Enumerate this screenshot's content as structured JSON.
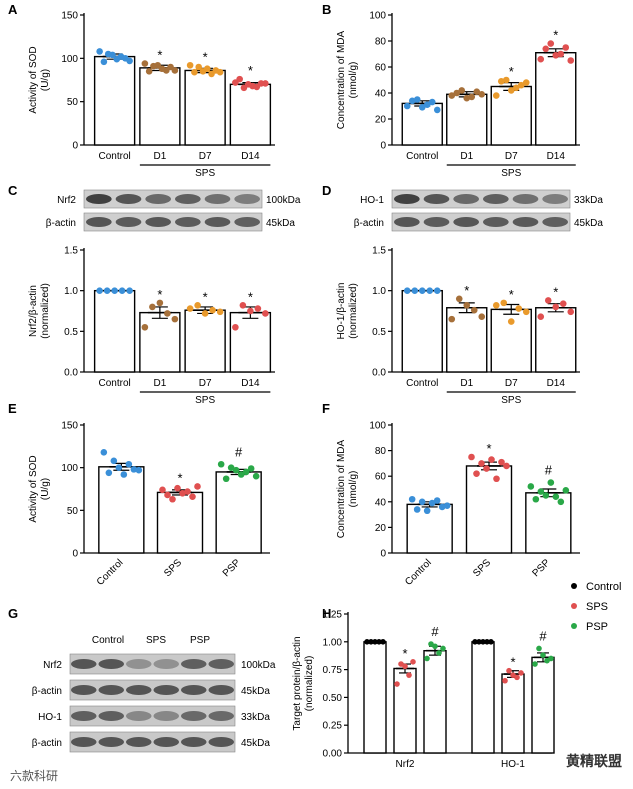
{
  "chart_data": [
    {
      "panel": "A",
      "type": "bar",
      "ylabel": [
        "Activity of SOD",
        "(U/g)"
      ],
      "ylim": [
        0,
        150
      ],
      "yticks": [
        0,
        50,
        100,
        150
      ],
      "categories": [
        "Control",
        "D1",
        "D7",
        "D14"
      ],
      "group_label": "SPS",
      "group_span": [
        1,
        3
      ],
      "values": [
        102,
        89,
        86,
        70
      ],
      "errors": [
        3,
        3,
        2.5,
        2
      ],
      "points": [
        [
          108,
          96,
          105,
          104,
          99,
          102,
          100,
          97
        ],
        [
          94,
          85,
          91,
          92,
          88,
          86,
          90,
          86
        ],
        [
          92,
          84,
          90,
          85,
          88,
          82,
          86,
          84
        ],
        [
          72,
          76,
          66,
          70,
          68,
          67,
          71,
          71
        ]
      ],
      "colors": [
        "#3a8fd8",
        "#a6703a",
        "#e99a2c",
        "#e05050"
      ],
      "sig": [
        "",
        "*",
        "*",
        "*"
      ]
    },
    {
      "panel": "B",
      "type": "bar",
      "ylabel": [
        "Concentration of MDA",
        "(nmol/g)"
      ],
      "ylim": [
        0,
        100
      ],
      "yticks": [
        0,
        20,
        40,
        60,
        80,
        100
      ],
      "categories": [
        "Control",
        "D1",
        "D7",
        "D14"
      ],
      "group_label": "SPS",
      "group_span": [
        1,
        3
      ],
      "values": [
        32,
        39,
        45,
        71
      ],
      "errors": [
        2,
        2,
        3,
        3
      ],
      "points": [
        [
          30,
          34,
          35,
          29,
          31,
          33,
          27
        ],
        [
          38,
          40,
          42,
          36,
          37,
          41,
          39
        ],
        [
          38,
          49,
          50,
          42,
          44,
          46,
          48
        ],
        [
          66,
          74,
          78,
          69,
          70,
          75,
          65
        ]
      ],
      "colors": [
        "#3a8fd8",
        "#a6703a",
        "#e99a2c",
        "#e05050"
      ],
      "sig": [
        "",
        "",
        "*",
        "*"
      ]
    },
    {
      "panel": "C",
      "type": "bar",
      "ylabel": [
        "Nrf2/β-actin",
        "(normalized)"
      ],
      "ylim": [
        0,
        1.5
      ],
      "yticks": [
        0.0,
        0.5,
        1.0,
        1.5
      ],
      "categories": [
        "Control",
        "D1",
        "D7",
        "D14"
      ],
      "group_label": "SPS",
      "group_span": [
        1,
        3
      ],
      "values": [
        1.0,
        0.73,
        0.76,
        0.73
      ],
      "errors": [
        0,
        0.07,
        0.04,
        0.07
      ],
      "points": [
        [
          1,
          1,
          1,
          1,
          1
        ],
        [
          0.55,
          0.8,
          0.85,
          0.72,
          0.65
        ],
        [
          0.78,
          0.82,
          0.72,
          0.76,
          0.74
        ],
        [
          0.55,
          0.82,
          0.75,
          0.78,
          0.72
        ]
      ],
      "colors": [
        "#3a8fd8",
        "#a6703a",
        "#e99a2c",
        "#e05050"
      ],
      "sig": [
        "",
        "*",
        "*",
        "*"
      ],
      "blot": {
        "rows": [
          "Nrf2",
          "β-actin"
        ],
        "sizes": [
          "100kDa",
          "45kDa"
        ]
      }
    },
    {
      "panel": "D",
      "type": "bar",
      "ylabel": [
        "HO-1/β-actin",
        "(normalized)"
      ],
      "ylim": [
        0,
        1.5
      ],
      "yticks": [
        0.0,
        0.5,
        1.0,
        1.5
      ],
      "categories": [
        "Control",
        "D1",
        "D7",
        "D14"
      ],
      "group_label": "SPS",
      "group_span": [
        1,
        3
      ],
      "values": [
        1.0,
        0.79,
        0.77,
        0.79
      ],
      "errors": [
        0,
        0.06,
        0.06,
        0.05
      ],
      "points": [
        [
          1,
          1,
          1,
          1,
          1
        ],
        [
          0.65,
          0.9,
          0.82,
          0.76,
          0.68
        ],
        [
          0.82,
          0.85,
          0.62,
          0.78,
          0.74
        ],
        [
          0.68,
          0.88,
          0.8,
          0.84,
          0.74
        ]
      ],
      "colors": [
        "#3a8fd8",
        "#a6703a",
        "#e99a2c",
        "#e05050"
      ],
      "sig": [
        "",
        "*",
        "*",
        "*"
      ],
      "blot": {
        "rows": [
          "HO-1",
          "β-actin"
        ],
        "sizes": [
          "33kDa",
          "45kDa"
        ]
      }
    },
    {
      "panel": "E",
      "type": "bar",
      "ylabel": [
        "Activity of SOD",
        "(U/g)"
      ],
      "ylim": [
        0,
        150
      ],
      "yticks": [
        0,
        50,
        100,
        150
      ],
      "categories": [
        "Control",
        "SPS",
        "PSP"
      ],
      "rotate_labels": true,
      "values": [
        101,
        71,
        95
      ],
      "errors": [
        4,
        3,
        3
      ],
      "points": [
        [
          118,
          94,
          108,
          100,
          92,
          104,
          98,
          97
        ],
        [
          74,
          68,
          63,
          76,
          70,
          72,
          66,
          78
        ],
        [
          104,
          87,
          100,
          97,
          92,
          95,
          99,
          90
        ]
      ],
      "colors": [
        "#3a8fd8",
        "#e05050",
        "#2aa848"
      ],
      "sig": [
        "",
        "*",
        "#"
      ]
    },
    {
      "panel": "F",
      "type": "bar",
      "ylabel": [
        "Concentration of MDA",
        "(nmol/g)"
      ],
      "ylim": [
        0,
        100
      ],
      "yticks": [
        0,
        20,
        40,
        60,
        80,
        100
      ],
      "categories": [
        "Control",
        "SPS",
        "PSP"
      ],
      "rotate_labels": true,
      "values": [
        38,
        68,
        47
      ],
      "errors": [
        2,
        3,
        3
      ],
      "points": [
        [
          42,
          34,
          40,
          33,
          39,
          41,
          36,
          37
        ],
        [
          75,
          62,
          70,
          66,
          73,
          58,
          71,
          68
        ],
        [
          52,
          42,
          48,
          45,
          55,
          44,
          40,
          49
        ]
      ],
      "colors": [
        "#3a8fd8",
        "#e05050",
        "#2aa848"
      ],
      "sig": [
        "",
        "*",
        "#"
      ]
    },
    {
      "panel": "H",
      "type": "bar",
      "ylabel": [
        "Target protein/β-actin",
        "(normalized)"
      ],
      "ylim": [
        0,
        1.25
      ],
      "yticks": [
        0.0,
        0.25,
        0.5,
        0.75,
        1.0,
        1.25
      ],
      "categories": [
        "Nrf2",
        "HO-1"
      ],
      "series": [
        {
          "name": "Control",
          "color": "#000000",
          "values": [
            1.0,
            1.0
          ],
          "errors": [
            0,
            0
          ],
          "points": [
            [
              1,
              1,
              1,
              1,
              1
            ],
            [
              1,
              1,
              1,
              1,
              1
            ]
          ],
          "sig": [
            "",
            ""
          ]
        },
        {
          "name": "SPS",
          "color": "#e05050",
          "values": [
            0.76,
            0.71
          ],
          "errors": [
            0.04,
            0.03
          ],
          "points": [
            [
              0.62,
              0.8,
              0.78,
              0.7,
              0.82
            ],
            [
              0.65,
              0.74,
              0.7,
              0.68,
              0.72
            ]
          ],
          "sig": [
            "*",
            "*"
          ]
        },
        {
          "name": "PSP",
          "color": "#2aa848",
          "values": [
            0.92,
            0.86
          ],
          "errors": [
            0.04,
            0.04
          ],
          "points": [
            [
              0.85,
              0.98,
              0.96,
              0.9,
              0.94
            ],
            [
              0.8,
              0.94,
              0.88,
              0.83,
              0.85
            ]
          ],
          "sig": [
            "#",
            "#"
          ]
        }
      ],
      "legend_placement": "top-right"
    }
  ],
  "blot_G": {
    "columns": [
      "Control",
      "SPS",
      "PSP"
    ],
    "rows": [
      "Nrf2",
      "β-actin",
      "HO-1",
      "β-actin"
    ],
    "sizes": [
      "100kDa",
      "45kDa",
      "33kDa",
      "45kDa"
    ]
  },
  "watermarks": [
    "六款科研",
    "黄精联盟"
  ]
}
